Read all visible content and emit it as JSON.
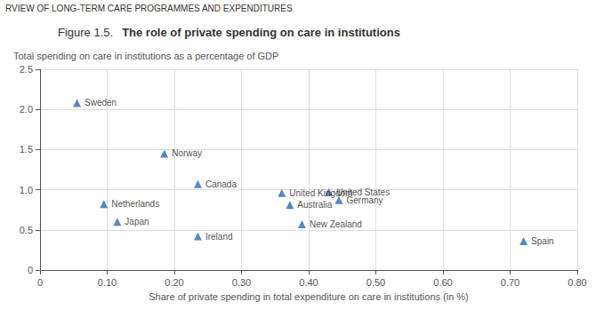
{
  "chart_data": {
    "type": "scatter",
    "title": "Figure 1.5.",
    "subtitle": "The role of private spending on care in institutions",
    "annotations": [
      "RVIEW OF LONG-TERM CARE PROGRAMMES AND EXPENDITURES"
    ],
    "ylabel": "Total spending on care in institutions as a percentage of GDP",
    "xlabel": "Share of private spending in total expenditure on care in institutions (in %)",
    "labels": [
      "Sweden",
      "Norway",
      "Canada",
      "Netherlands",
      "Japan",
      "Ireland",
      "United Kingdom",
      "Australia",
      "New Zealand",
      "United States",
      "Germany",
      "Spain"
    ],
    "x": [
      0.055,
      0.185,
      0.235,
      0.095,
      0.115,
      0.235,
      0.36,
      0.372,
      0.39,
      0.43,
      0.445,
      0.72
    ],
    "values": [
      2.08,
      1.45,
      1.07,
      0.82,
      0.6,
      0.42,
      0.96,
      0.81,
      0.57,
      0.97,
      0.87,
      0.36
    ],
    "color": "#2B6CB0",
    "marker": "triangle",
    "xlim": [
      0,
      0.8
    ],
    "ylim": [
      0,
      2.5
    ],
    "xticks": [
      0,
      {
        "value": 0.1,
        "label": "0.10"
      },
      {
        "value": 0.2,
        "label": "0.20"
      },
      {
        "value": 0.3,
        "label": "0.30"
      },
      {
        "value": 0.4,
        "label": "0.40"
      },
      {
        "value": 0.5,
        "label": "0.50"
      },
      {
        "value": 0.6,
        "label": "0.60"
      },
      {
        "value": 0.7,
        "label": "0.70"
      },
      {
        "value": 0.8,
        "label": "0.80"
      }
    ],
    "yticks": [
      0,
      0.5,
      {
        "value": 1.0,
        "label": "1.0"
      },
      1.5,
      {
        "value": 2.0,
        "label": "2.0"
      },
      2.5
    ],
    "grid": true
  }
}
